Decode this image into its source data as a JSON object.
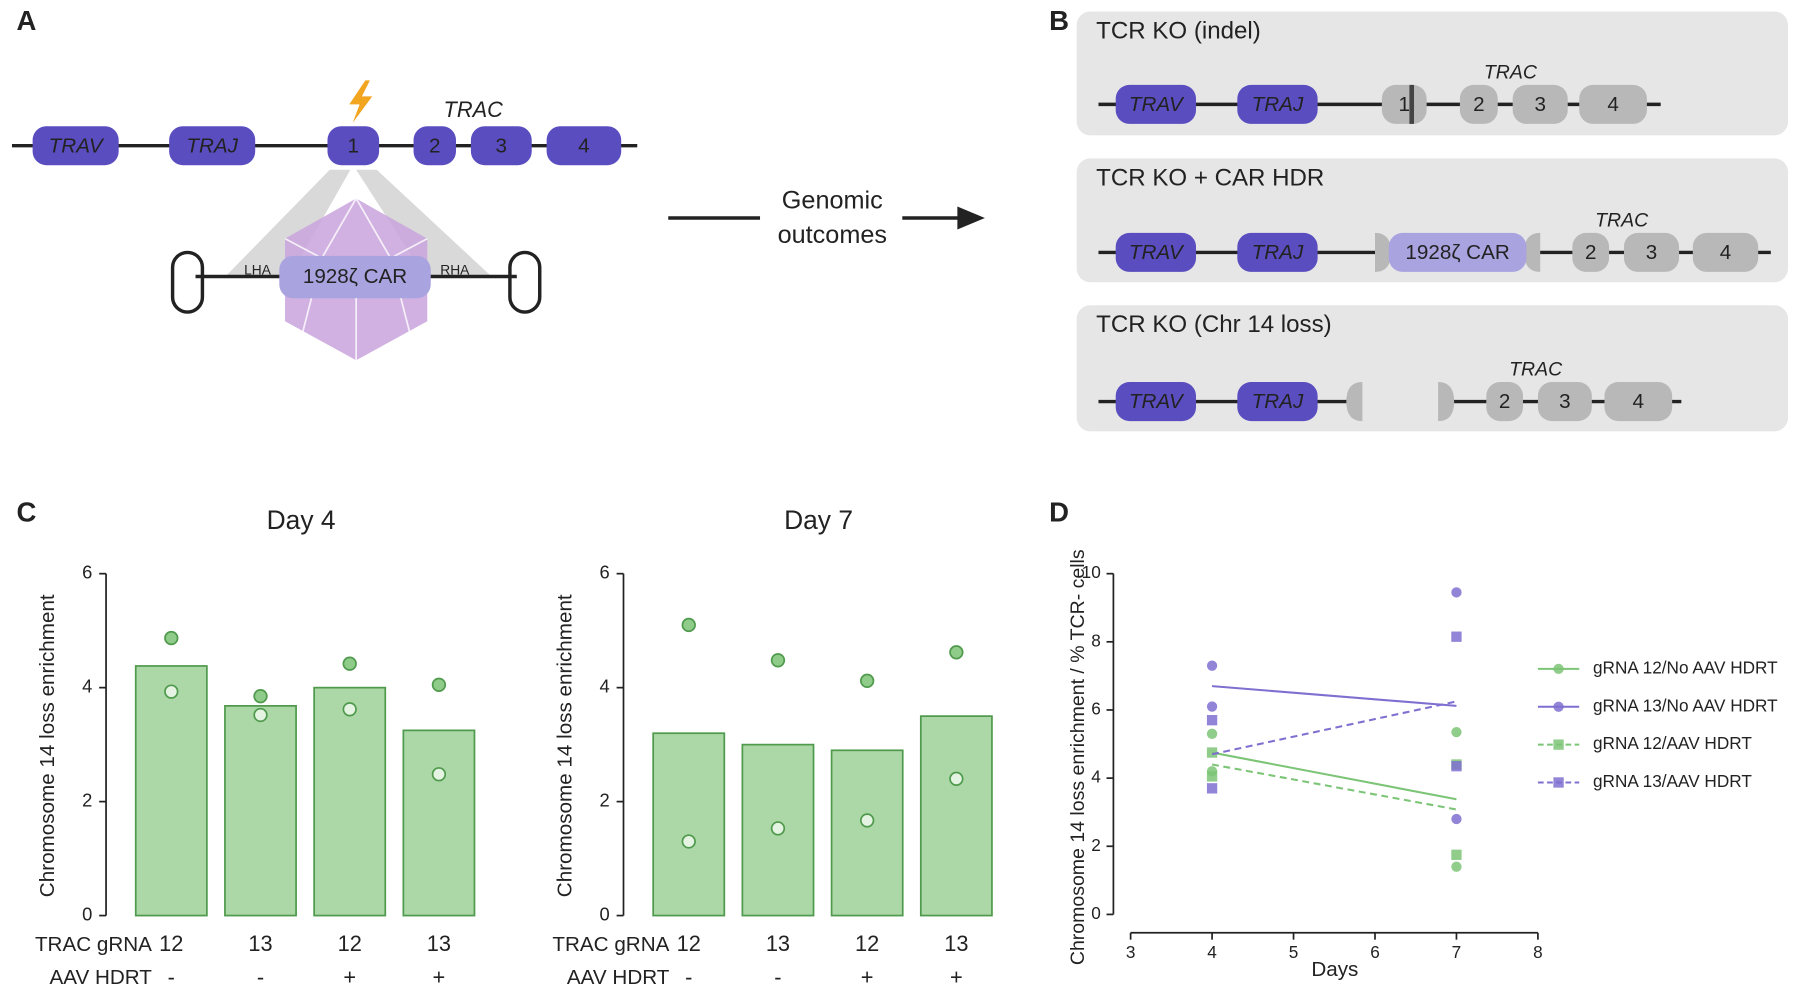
{
  "panel_labels": [
    "A",
    "B",
    "C",
    "D"
  ],
  "diagram_a": {
    "genes": [
      "TRAV",
      "TRAJ",
      "1",
      "2",
      "3",
      "4"
    ],
    "locus": "TRAC",
    "insert": "1928ζ CAR",
    "lha": "LHA",
    "rha": "RHA"
  },
  "arrow_label": [
    "Genomic",
    "outcomes"
  ],
  "diagram_b": [
    {
      "title": "TCR KO (indel)",
      "genes": [
        "TRAV",
        "TRAJ",
        "1",
        "2",
        "3",
        "4"
      ],
      "locus": "TRAC"
    },
    {
      "title": "TCR KO + CAR HDR",
      "genes": [
        "TRAV",
        "TRAJ",
        "1928ζ CAR",
        "2",
        "3",
        "4"
      ],
      "locus": "TRAC"
    },
    {
      "title": "TCR KO (Chr 14 loss)",
      "genes": [
        "TRAV",
        "TRAJ",
        "2",
        "3",
        "4"
      ],
      "locus": "TRAC"
    }
  ],
  "chart_data": [
    {
      "type": "bar",
      "title": "Day 4",
      "ylabel": "Chromosome 14 loss enrichment",
      "category_row_label": "TRAC gRNA",
      "categories": [
        "12",
        "13",
        "12",
        "13"
      ],
      "category2_row_label": "AAV HDRT",
      "categories2": [
        "-",
        "-",
        "+",
        "+"
      ],
      "values": [
        4.38,
        3.68,
        4.0,
        3.25
      ],
      "color": "#acd8a7",
      "edge_color": "#4f9a4c",
      "points": [
        {
          "values": [
            4.87,
            3.85,
            4.42,
            4.05
          ],
          "filled": true
        },
        {
          "values": [
            3.93,
            3.52,
            3.62,
            2.48
          ],
          "filled": false
        }
      ],
      "ylim": [
        0,
        6
      ],
      "yticks": [
        0,
        2,
        4,
        6
      ]
    },
    {
      "type": "bar",
      "title": "Day 7",
      "ylabel": "Chromosome 14 loss enrichment",
      "category_row_label": "TRAC gRNA",
      "categories": [
        "12",
        "13",
        "12",
        "13"
      ],
      "category2_row_label": "AAV HDRT",
      "categories2": [
        "-",
        "-",
        "+",
        "+"
      ],
      "values": [
        3.2,
        3.0,
        2.9,
        3.5
      ],
      "color": "#acd8a7",
      "edge_color": "#4f9a4c",
      "points": [
        {
          "values": [
            5.1,
            4.48,
            4.12,
            4.62
          ],
          "filled": true
        },
        {
          "values": [
            1.3,
            1.53,
            1.67,
            2.4
          ],
          "filled": false
        }
      ],
      "ylim": [
        0,
        6
      ],
      "yticks": [
        0,
        2,
        4,
        6
      ]
    },
    {
      "type": "line",
      "xlabel": "Days",
      "ylabel": "Chromosome 14 loss enrichment / % TCR- cells",
      "xlim": [
        3,
        8
      ],
      "xticks": [
        3,
        4,
        5,
        6,
        7,
        8
      ],
      "ylim": [
        0,
        10
      ],
      "yticks": [
        0,
        2,
        4,
        6,
        8,
        10
      ],
      "legend": "right",
      "series": [
        {
          "name": "gRNA 12/No AAV HDRT",
          "color": "#7cc476",
          "marker": "circle",
          "dashed": false,
          "x": [
            4,
            4,
            7,
            7
          ],
          "values": [
            5.3,
            4.2,
            5.35,
            1.4
          ],
          "line_x": [
            4,
            7
          ],
          "line_values": [
            4.75,
            3.38
          ]
        },
        {
          "name": "gRNA 13/No AAV HDRT",
          "color": "#7f6fd0",
          "marker": "circle",
          "dashed": false,
          "x": [
            4,
            4,
            7,
            7
          ],
          "values": [
            7.3,
            6.1,
            9.45,
            2.8
          ],
          "line_x": [
            4,
            7
          ],
          "line_values": [
            6.7,
            6.12
          ]
        },
        {
          "name": "gRNA 12/AAV HDRT",
          "color": "#7cc476",
          "marker": "square",
          "dashed": true,
          "x": [
            4,
            4,
            7,
            7
          ],
          "values": [
            4.75,
            4.05,
            4.4,
            1.75
          ],
          "line_x": [
            4,
            7
          ],
          "line_values": [
            4.4,
            3.08
          ]
        },
        {
          "name": "gRNA 13/AAV HDRT",
          "color": "#7f6fd0",
          "marker": "square",
          "dashed": true,
          "x": [
            4,
            4,
            7,
            7
          ],
          "values": [
            5.7,
            3.7,
            8.15,
            4.35
          ],
          "line_x": [
            4,
            7
          ],
          "line_values": [
            4.7,
            6.25
          ]
        }
      ]
    }
  ]
}
